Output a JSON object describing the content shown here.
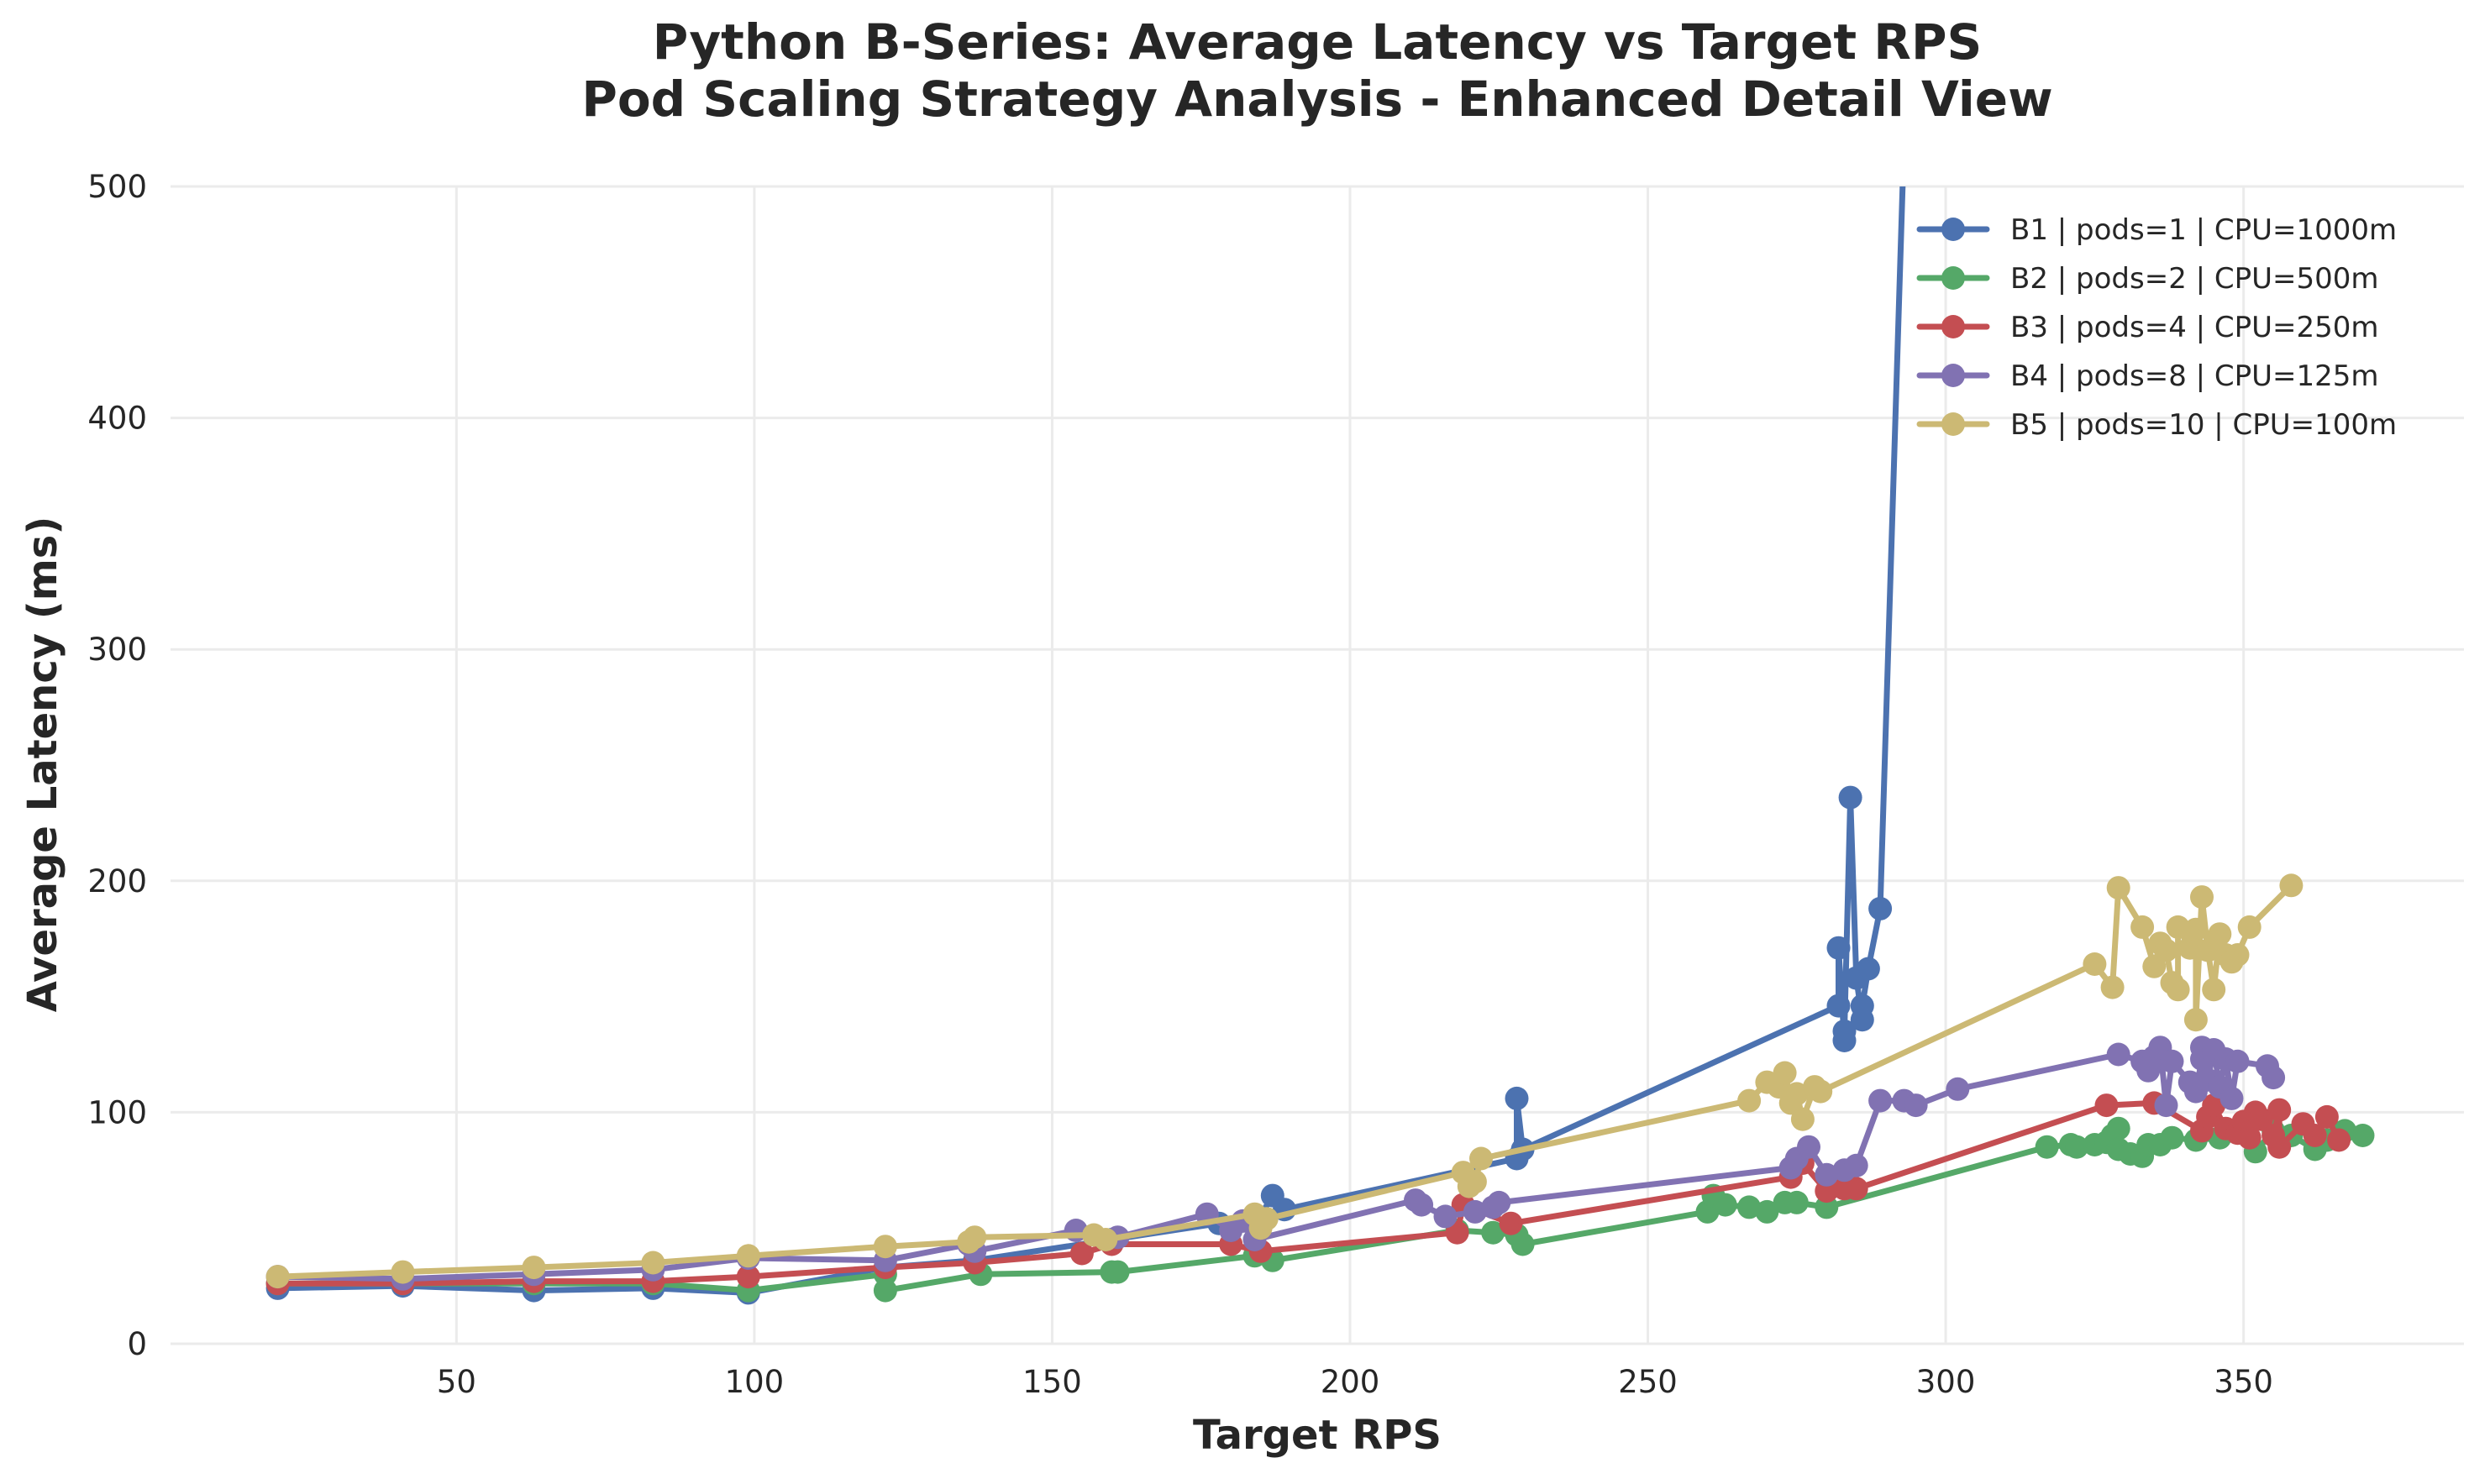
{
  "chart_data": {
    "type": "line",
    "title": "Python B-Series: Average Latency vs Target RPS",
    "subtitle": "Pod Scaling Strategy Analysis - Enhanced Detail View",
    "xlabel": "Target RPS",
    "ylabel": "Average Latency (ms)",
    "xlim": [
      2,
      387
    ],
    "ylim": [
      0,
      500
    ],
    "x_ticks": [
      50,
      100,
      150,
      200,
      250,
      300,
      350
    ],
    "y_ticks": [
      0,
      100,
      200,
      300,
      400,
      500
    ],
    "grid": true,
    "legend_position": "top-right",
    "series": [
      {
        "name": "B1 | pods=1 | CPU=1000m",
        "color": "#4c72b0",
        "points": [
          [
            20,
            24
          ],
          [
            41,
            25
          ],
          [
            63,
            23
          ],
          [
            83,
            24
          ],
          [
            99,
            22
          ],
          [
            122,
            33
          ],
          [
            137,
            36
          ],
          [
            160,
            45
          ],
          [
            178,
            52
          ],
          [
            184,
            51
          ],
          [
            187,
            64
          ],
          [
            189,
            58
          ],
          [
            228,
            80
          ],
          [
            228,
            106
          ],
          [
            229,
            84
          ],
          [
            282,
            146
          ],
          [
            282,
            171
          ],
          [
            283,
            131
          ],
          [
            283,
            135
          ],
          [
            284,
            236
          ],
          [
            285,
            158
          ],
          [
            286,
            140
          ],
          [
            286,
            146
          ],
          [
            287,
            162
          ],
          [
            289,
            188
          ],
          [
            293,
            520
          ]
        ]
      },
      {
        "name": "B2 | pods=2 | CPU=500m",
        "color": "#55a868",
        "points": [
          [
            20,
            26
          ],
          [
            41,
            26
          ],
          [
            63,
            26
          ],
          [
            83,
            26
          ],
          [
            99,
            23
          ],
          [
            122,
            30
          ],
          [
            122,
            23
          ],
          [
            138,
            30
          ],
          [
            160,
            31
          ],
          [
            161,
            31
          ],
          [
            184,
            38
          ],
          [
            187,
            36
          ],
          [
            218,
            49
          ],
          [
            224,
            48
          ],
          [
            228,
            47
          ],
          [
            229,
            43
          ],
          [
            260,
            57
          ],
          [
            261,
            64
          ],
          [
            263,
            60
          ],
          [
            267,
            59
          ],
          [
            270,
            57
          ],
          [
            273,
            61
          ],
          [
            275,
            61
          ],
          [
            280,
            59
          ],
          [
            317,
            85
          ],
          [
            321,
            86
          ],
          [
            322,
            85
          ],
          [
            325,
            86
          ],
          [
            327,
            87
          ],
          [
            328,
            90
          ],
          [
            329,
            93
          ],
          [
            329,
            84
          ],
          [
            331,
            82
          ],
          [
            333,
            81
          ],
          [
            334,
            86
          ],
          [
            336,
            86
          ],
          [
            338,
            89
          ],
          [
            342,
            88
          ],
          [
            346,
            89
          ],
          [
            350,
            91
          ],
          [
            352,
            83
          ],
          [
            355,
            92
          ],
          [
            358,
            90
          ],
          [
            362,
            84
          ],
          [
            364,
            88
          ],
          [
            367,
            92
          ],
          [
            370,
            90
          ]
        ]
      },
      {
        "name": "B3 | pods=4 | CPU=250m",
        "color": "#c44e52",
        "points": [
          [
            20,
            26
          ],
          [
            41,
            26
          ],
          [
            63,
            27
          ],
          [
            83,
            27
          ],
          [
            99,
            29
          ],
          [
            122,
            33
          ],
          [
            137,
            35
          ],
          [
            155,
            39
          ],
          [
            160,
            43
          ],
          [
            180,
            43
          ],
          [
            185,
            40
          ],
          [
            218,
            48
          ],
          [
            219,
            60
          ],
          [
            227,
            52
          ],
          [
            274,
            72
          ],
          [
            276,
            78
          ],
          [
            280,
            66
          ],
          [
            283,
            67
          ],
          [
            285,
            67
          ],
          [
            327,
            103
          ],
          [
            335,
            104
          ],
          [
            343,
            92
          ],
          [
            344,
            98
          ],
          [
            345,
            103
          ],
          [
            347,
            93
          ],
          [
            349,
            91
          ],
          [
            350,
            96
          ],
          [
            351,
            89
          ],
          [
            352,
            100
          ],
          [
            353,
            97
          ],
          [
            355,
            90
          ],
          [
            356,
            101
          ],
          [
            356,
            85
          ],
          [
            360,
            95
          ],
          [
            362,
            90
          ],
          [
            364,
            98
          ],
          [
            366,
            88
          ]
        ]
      },
      {
        "name": "B4 | pods=8 | CPU=125m",
        "color": "#8172b2",
        "points": [
          [
            20,
            29
          ],
          [
            41,
            28
          ],
          [
            63,
            30
          ],
          [
            83,
            32
          ],
          [
            99,
            37
          ],
          [
            122,
            36
          ],
          [
            136,
            43
          ],
          [
            137,
            40
          ],
          [
            154,
            49
          ],
          [
            161,
            46
          ],
          [
            176,
            56
          ],
          [
            180,
            49
          ],
          [
            182,
            53
          ],
          [
            184,
            45
          ],
          [
            211,
            62
          ],
          [
            212,
            60
          ],
          [
            216,
            55
          ],
          [
            221,
            57
          ],
          [
            224,
            59
          ],
          [
            225,
            61
          ],
          [
            274,
            76
          ],
          [
            275,
            80
          ],
          [
            277,
            85
          ],
          [
            280,
            73
          ],
          [
            283,
            75
          ],
          [
            285,
            77
          ],
          [
            289,
            105
          ],
          [
            293,
            105
          ],
          [
            295,
            103
          ],
          [
            302,
            110
          ],
          [
            329,
            125
          ],
          [
            333,
            122
          ],
          [
            334,
            118
          ],
          [
            335,
            124
          ],
          [
            336,
            128
          ],
          [
            337,
            103
          ],
          [
            338,
            122
          ],
          [
            341,
            113
          ],
          [
            342,
            109
          ],
          [
            343,
            123
          ],
          [
            343,
            128
          ],
          [
            344,
            114
          ],
          [
            345,
            127
          ],
          [
            346,
            111
          ],
          [
            347,
            123
          ],
          [
            348,
            106
          ],
          [
            349,
            122
          ],
          [
            354,
            120
          ],
          [
            355,
            115
          ]
        ]
      },
      {
        "name": "B5 | pods=10 | CPU=100m",
        "color": "#ccb974",
        "points": [
          [
            20,
            29
          ],
          [
            41,
            31
          ],
          [
            63,
            33
          ],
          [
            83,
            35
          ],
          [
            99,
            38
          ],
          [
            122,
            42
          ],
          [
            136,
            44
          ],
          [
            137,
            46
          ],
          [
            157,
            47
          ],
          [
            159,
            45
          ],
          [
            184,
            56
          ],
          [
            185,
            50
          ],
          [
            186,
            54
          ],
          [
            219,
            74
          ],
          [
            220,
            68
          ],
          [
            221,
            70
          ],
          [
            222,
            80
          ],
          [
            267,
            105
          ],
          [
            270,
            113
          ],
          [
            272,
            111
          ],
          [
            273,
            117
          ],
          [
            274,
            104
          ],
          [
            275,
            108
          ],
          [
            276,
            97
          ],
          [
            278,
            111
          ],
          [
            279,
            109
          ],
          [
            325,
            164
          ],
          [
            328,
            154
          ],
          [
            329,
            197
          ],
          [
            333,
            180
          ],
          [
            335,
            163
          ],
          [
            336,
            173
          ],
          [
            337,
            170
          ],
          [
            338,
            156
          ],
          [
            339,
            153
          ],
          [
            339,
            180
          ],
          [
            341,
            171
          ],
          [
            342,
            179
          ],
          [
            342,
            140
          ],
          [
            343,
            193
          ],
          [
            344,
            170
          ],
          [
            345,
            153
          ],
          [
            346,
            177
          ],
          [
            347,
            168
          ],
          [
            348,
            165
          ],
          [
            349,
            168
          ],
          [
            351,
            180
          ],
          [
            358,
            198
          ]
        ]
      }
    ]
  }
}
